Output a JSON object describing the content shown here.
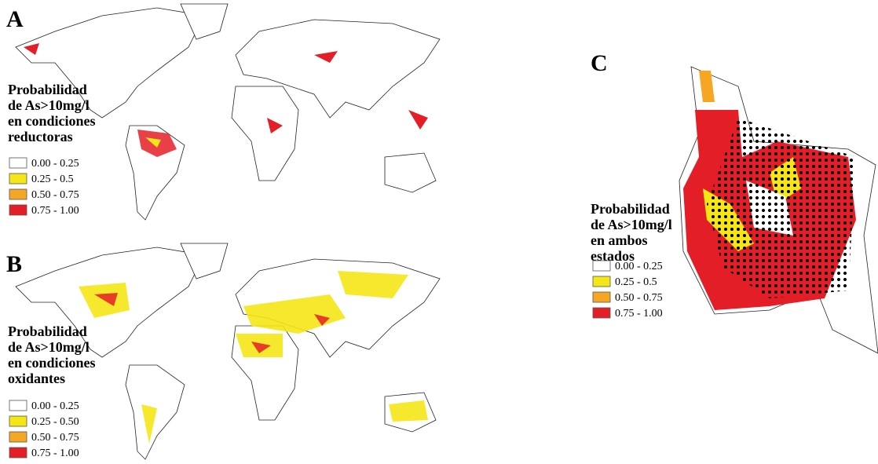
{
  "panels": [
    {
      "label": "A",
      "legend_title": [
        "Probabilidad",
        "de As>10mg/l",
        "en condiciones",
        "reductoras"
      ],
      "legend": [
        {
          "range": "0.00 - 0.25",
          "color": "#ffffff"
        },
        {
          "range": "0.25 - 0.5",
          "color": "#f5e616"
        },
        {
          "range": "0.50  - 0.75",
          "color": "#f5a623"
        },
        {
          "range": "0.75 - 1.00",
          "color": "#e41e26"
        }
      ]
    },
    {
      "label": "B",
      "legend_title": [
        "Probabilidad",
        "de As>10mg/l",
        "en condiciones",
        "oxidantes"
      ],
      "legend": [
        {
          "range": "0.00 - 0.25",
          "color": "#ffffff"
        },
        {
          "range": "0.25 - 0.50",
          "color": "#f5e616"
        },
        {
          "range": "0.50 - 0.75",
          "color": "#f5a623"
        },
        {
          "range": "0.75 - 1.00",
          "color": "#e41e26"
        }
      ]
    },
    {
      "label": "C",
      "legend_title": [
        "Probabilidad",
        "de As>10mg/l",
        "en ambos",
        "estados"
      ],
      "legend": [
        {
          "range": "0.00 - 0.25",
          "color": "#ffffff"
        },
        {
          "range": "0.25 - 0.5",
          "color": "#f5e616"
        },
        {
          "range": "0.50  - 0.75",
          "color": "#f5a623"
        },
        {
          "range": "0.75 - 1.00",
          "color": "#e41e26"
        }
      ]
    }
  ]
}
